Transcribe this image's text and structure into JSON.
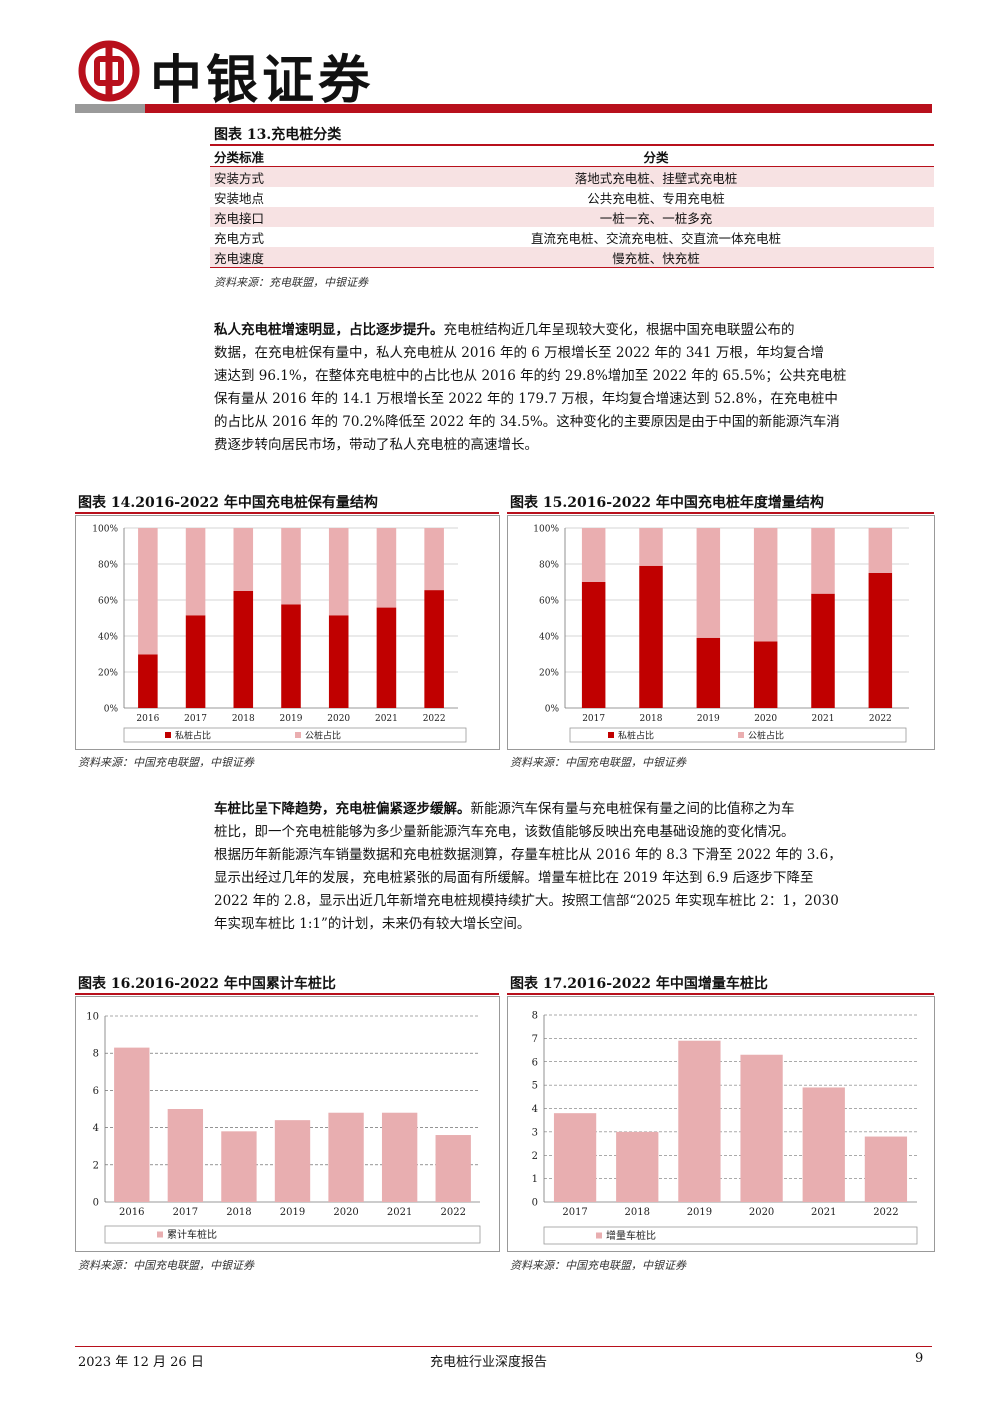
{
  "header": {
    "brand": "中银证券"
  },
  "table13": {
    "title": "图表 13.充电桩分类",
    "headers": [
      "分类标准",
      "分类"
    ],
    "rows": [
      [
        "安装方式",
        "落地式充电桩、挂壁式充电桩"
      ],
      [
        "安装地点",
        "公共充电桩、专用充电桩"
      ],
      [
        "充电接口",
        "一桩一充、一桩多充"
      ],
      [
        "充电方式",
        "直流充电桩、交流充电桩、交直流一体充电桩"
      ],
      [
        "充电速度",
        "慢充桩、快充桩"
      ]
    ],
    "source": "资料来源：充电联盟，中银证券"
  },
  "para1": {
    "lead": "私人充电桩增速明显，占比逐步提升。",
    "lines": [
      "充电桩结构近几年呈现较大变化，根据中国充电联盟公布的",
      "数据，在充电桩保有量中，私人充电桩从 2016 年的 6 万根增长至 2022 年的 341 万根，年均复合增",
      "速达到 96.1%，在整体充电桩中的占比也从 2016 年的约 29.8%增加至 2022 年的 65.5%；公共充电桩",
      "保有量从 2016 年的 14.1 万根增长至 2022 年的 179.7 万根，年均复合增速达到 52.8%，在充电桩中",
      "的占比从 2016 年的 70.2%降低至 2022 年的 34.5%。这种变化的主要原因是由于中国的新能源汽车消",
      "费逐步转向居民市场，带动了私人充电桩的高速增长。"
    ]
  },
  "para2": {
    "lead": "车桩比呈下降趋势，充电桩偏紧逐步缓解。",
    "lines": [
      "新能源汽车保有量与充电桩保有量之间的比值称之为车",
      "桩比，即一个充电桩能够为多少量新能源汽车充电，该数值能够反映出充电基础设施的变化情况。",
      "根据历年新能源汽车销量数据和充电桩数据测算，存量车桩比从 2016 年的 8.3 下滑至 2022 年的 3.6，",
      "显示出经过几年的发展，充电桩紧张的局面有所缓解。增量车桩比在 2019 年达到 6.9 后逐步下降至",
      "2022 年的 2.8，显示出近几年新增充电桩规模持续扩大。按照工信部“2025 年实现车桩比 2：1，2030",
      "年实现车桩比 1:1”的计划，未来仍有较大增长空间。"
    ]
  },
  "chart_data": [
    {
      "id": "fig14",
      "type": "bar",
      "stacked": true,
      "title": "图表 14.2016-2022 年中国充电桩保有量结构",
      "categories": [
        "2016",
        "2017",
        "2018",
        "2019",
        "2020",
        "2021",
        "2022"
      ],
      "series": [
        {
          "name": "私桩占比",
          "color": "#c00000",
          "values": [
            29.8,
            51.5,
            65,
            57.5,
            51.5,
            55.8,
            65.5
          ]
        },
        {
          "name": "公桩占比",
          "color": "#eaaeb0",
          "values": [
            70.2,
            48.5,
            35,
            42.5,
            48.5,
            44.2,
            34.5
          ]
        }
      ],
      "yticks": [
        "0%",
        "20%",
        "40%",
        "60%",
        "80%",
        "100%"
      ],
      "ylim": [
        0,
        100
      ],
      "legend": "bottom",
      "source": "资料来源：中国充电联盟，中银证券"
    },
    {
      "id": "fig15",
      "type": "bar",
      "stacked": true,
      "title": "图表 15.2016-2022 年中国充电桩年度增量结构",
      "categories": [
        "2017",
        "2018",
        "2019",
        "2020",
        "2021",
        "2022"
      ],
      "series": [
        {
          "name": "私桩占比",
          "color": "#c00000",
          "values": [
            70,
            79,
            39,
            37,
            63.5,
            75
          ]
        },
        {
          "name": "公桩占比",
          "color": "#eaaeb0",
          "values": [
            30,
            21,
            61,
            63,
            36.5,
            25
          ]
        }
      ],
      "yticks": [
        "0%",
        "20%",
        "40%",
        "60%",
        "80%",
        "100%"
      ],
      "ylim": [
        0,
        100
      ],
      "legend": "bottom",
      "source": "资料来源：中国充电联盟，中银证券"
    },
    {
      "id": "fig16",
      "type": "bar",
      "title": "图表 16.2016-2022 年中国累计车桩比",
      "categories": [
        "2016",
        "2017",
        "2018",
        "2019",
        "2020",
        "2021",
        "2022"
      ],
      "series": [
        {
          "name": "累计车桩比",
          "color": "#e8aeb0",
          "values": [
            8.3,
            5.0,
            3.8,
            4.4,
            4.8,
            4.8,
            3.6
          ]
        }
      ],
      "yticks": [
        "0",
        "2",
        "4",
        "6",
        "8",
        "10"
      ],
      "ylim": [
        0,
        10
      ],
      "legend": "bottom",
      "source": "资料来源：中国充电联盟，中银证券"
    },
    {
      "id": "fig17",
      "type": "bar",
      "title": "图表 17.2016-2022 年中国增量车桩比",
      "categories": [
        "2017",
        "2018",
        "2019",
        "2020",
        "2021",
        "2022"
      ],
      "series": [
        {
          "name": "增量车桩比",
          "color": "#e8aeb0",
          "values": [
            3.8,
            3.0,
            6.9,
            6.3,
            4.9,
            2.8
          ]
        }
      ],
      "yticks": [
        "0",
        "1",
        "2",
        "3",
        "4",
        "5",
        "6",
        "7",
        "8"
      ],
      "ylim": [
        0,
        8
      ],
      "legend": "bottom",
      "source": "资料来源：中国充电联盟，中银证券"
    }
  ],
  "footer": {
    "date": "2023 年 12 月 26 日",
    "report": "充电桩行业深度报告",
    "page": "9"
  }
}
